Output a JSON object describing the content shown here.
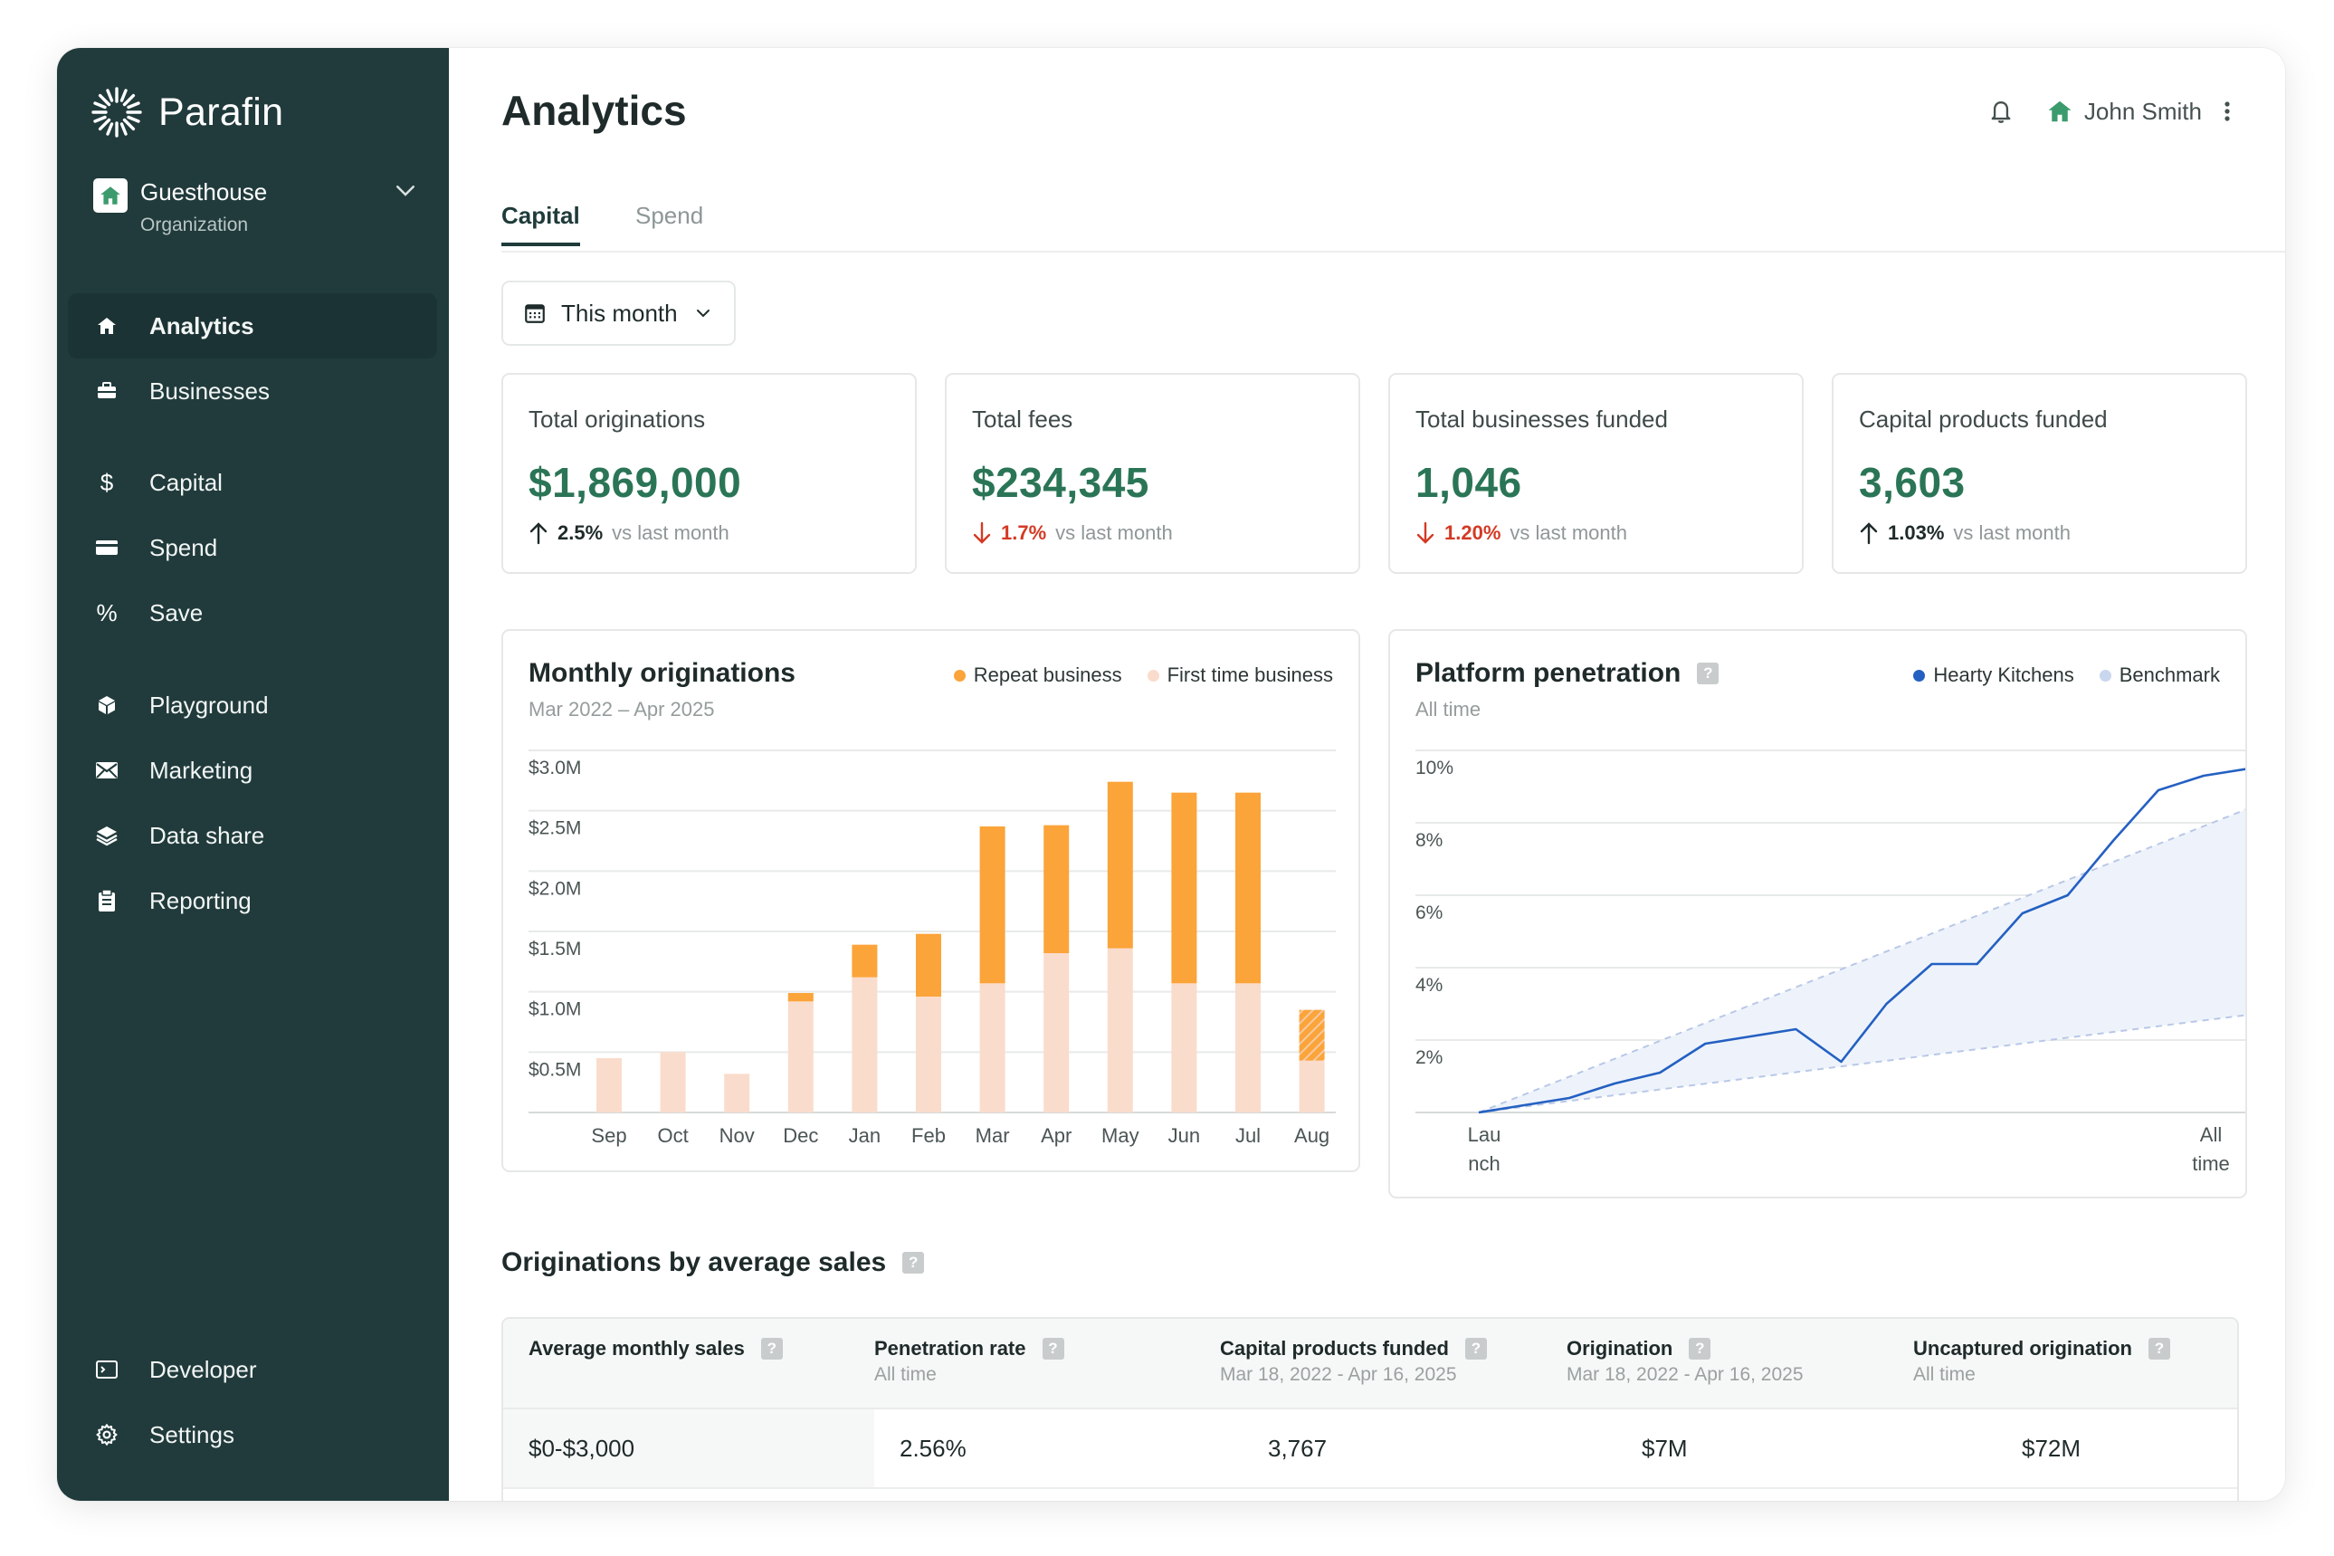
{
  "brand": {
    "name": "Parafin"
  },
  "org": {
    "name": "Guesthouse",
    "type": "Organization"
  },
  "nav": {
    "analytics": "Analytics",
    "businesses": "Businesses",
    "capital": "Capital",
    "spend": "Spend",
    "save": "Save",
    "playground": "Playground",
    "marketing": "Marketing",
    "data_share": "Data share",
    "reporting": "Reporting",
    "developer": "Developer",
    "settings": "Settings"
  },
  "header": {
    "title": "Analytics",
    "user": "John Smith"
  },
  "tabs": {
    "capital": "Capital",
    "spend": "Spend"
  },
  "period": {
    "label": "This month"
  },
  "kpis": [
    {
      "label": "Total originations",
      "value": "$1,869,000",
      "delta": "2.5%",
      "direction": "up",
      "vs": "vs last month"
    },
    {
      "label": "Total fees",
      "value": "$234,345",
      "delta": "1.7%",
      "direction": "down",
      "vs": "vs last month"
    },
    {
      "label": "Total businesses funded",
      "value": "1,046",
      "delta": "1.20%",
      "direction": "down",
      "vs": "vs last month"
    },
    {
      "label": "Capital products funded",
      "value": "3,603",
      "delta": "1.03%",
      "direction": "up",
      "vs": "vs last month"
    }
  ],
  "colors": {
    "sidebar": "#213b3c",
    "accent_green": "#2b7557",
    "repeat": "#fba43a",
    "first_time": "#fadccc",
    "line": "#2460c2",
    "benchmark": "#c8d6ee",
    "down": "#d33a24"
  },
  "monthly_chart": {
    "title": "Monthly originations",
    "subtitle": "Mar 2022 – Apr 2025",
    "legend": [
      "Repeat business",
      "First time business"
    ]
  },
  "platform_chart": {
    "title": "Platform penetration",
    "subtitle": "All time",
    "legend": [
      "Hearty Kitchens",
      "Benchmark"
    ],
    "x_start": [
      "Lau",
      "nch"
    ],
    "x_end": [
      "All",
      "time"
    ]
  },
  "chart_data": [
    {
      "type": "bar",
      "stacked": true,
      "categories": [
        "Sep",
        "Oct",
        "Nov",
        "Dec",
        "Jan",
        "Feb",
        "Mar",
        "Apr",
        "May",
        "Jun",
        "Jul",
        "Aug"
      ],
      "series": [
        {
          "name": "First time business",
          "values": [
            0.45,
            0.5,
            0.32,
            0.92,
            1.12,
            0.96,
            1.07,
            1.32,
            1.36,
            1.07,
            1.07,
            0.43
          ]
        },
        {
          "name": "Repeat business",
          "values": [
            0,
            0,
            0,
            0.07,
            0.27,
            0.52,
            1.3,
            1.06,
            1.38,
            1.58,
            1.58,
            0.42
          ]
        }
      ],
      "tick_labels": [
        "$3.0M",
        "$2.5M",
        "$2.0M",
        "$1.5M",
        "$1.0M",
        "$0.5M"
      ],
      "ylim": [
        0,
        3.0
      ],
      "grid": true,
      "legend_position": "top-right"
    },
    {
      "type": "line",
      "x": [
        0,
        1,
        2,
        3,
        4,
        5,
        6,
        7,
        8,
        9,
        10,
        11,
        12,
        13,
        14,
        15,
        16,
        17
      ],
      "series": [
        {
          "name": "Hearty Kitchens",
          "values": [
            0,
            0.2,
            0.4,
            0.8,
            1.1,
            1.9,
            2.1,
            2.3,
            1.4,
            3.0,
            4.1,
            4.1,
            5.5,
            6.0,
            7.5,
            8.9,
            9.3,
            9.5
          ]
        }
      ],
      "benchmark_band": {
        "upper": [
          0,
          8.4
        ],
        "lower": [
          0,
          2.7
        ]
      },
      "tick_labels": [
        "10%",
        "8%",
        "6%",
        "4%",
        "2%"
      ],
      "ylim": [
        0,
        10
      ],
      "grid": true,
      "legend_position": "top-right"
    }
  ],
  "table": {
    "title": "Originations by average sales",
    "columns": [
      {
        "label": "Average monthly sales",
        "sub": ""
      },
      {
        "label": "Penetration rate",
        "sub": "All time"
      },
      {
        "label": "Capital products funded",
        "sub": "Mar 18, 2022 - Apr 16, 2025"
      },
      {
        "label": "Origination",
        "sub": "Mar 18, 2022 - Apr 16, 2025"
      },
      {
        "label": "Uncaptured origination",
        "sub": "All time"
      }
    ],
    "rows": [
      [
        "$0-$3,000",
        "2.56%",
        "3,767",
        "$7M",
        "$72M"
      ]
    ]
  }
}
